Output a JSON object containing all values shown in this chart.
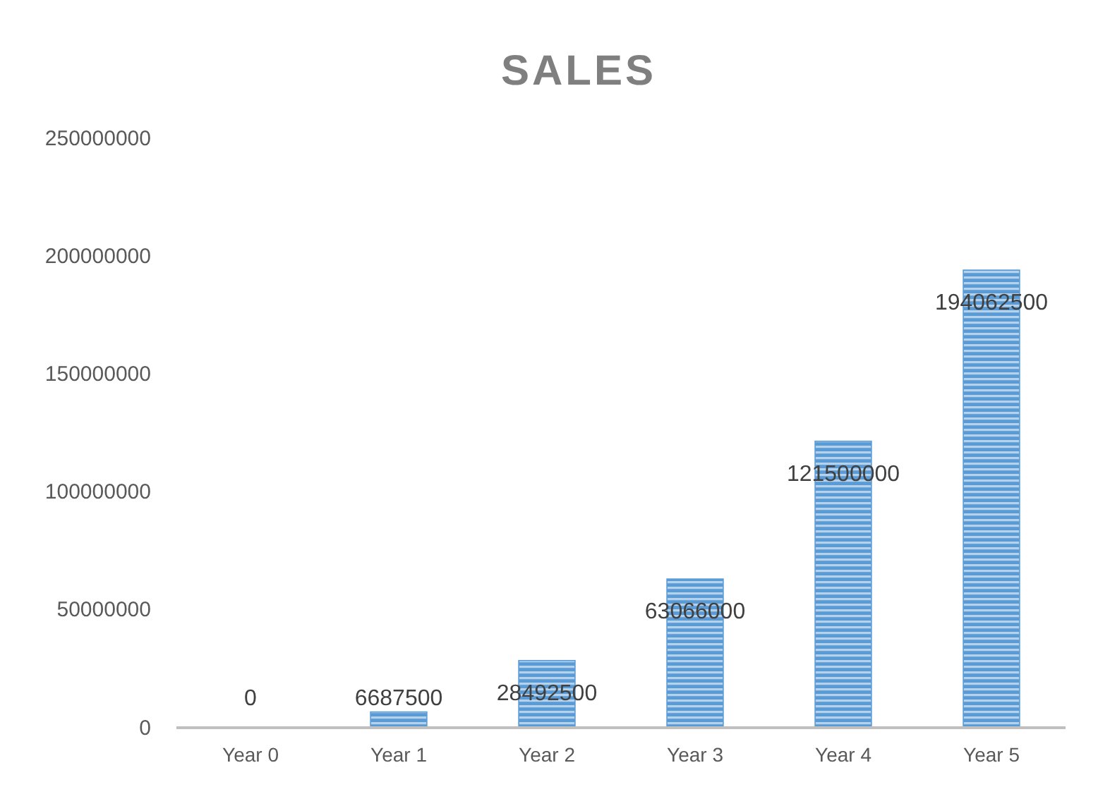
{
  "chart_data": {
    "type": "bar",
    "title": "SALES",
    "categories": [
      "Year 0",
      "Year 1",
      "Year 2",
      "Year 3",
      "Year 4",
      "Year 5"
    ],
    "values": [
      0,
      6687500,
      28492500,
      63066000,
      121500000,
      194062500
    ],
    "color": "#5b9bd5",
    "ylim": [
      0,
      250000000
    ],
    "yticks": [
      0,
      50000000,
      100000000,
      150000000,
      200000000,
      250000000
    ],
    "grid": false,
    "data_labels": true
  }
}
